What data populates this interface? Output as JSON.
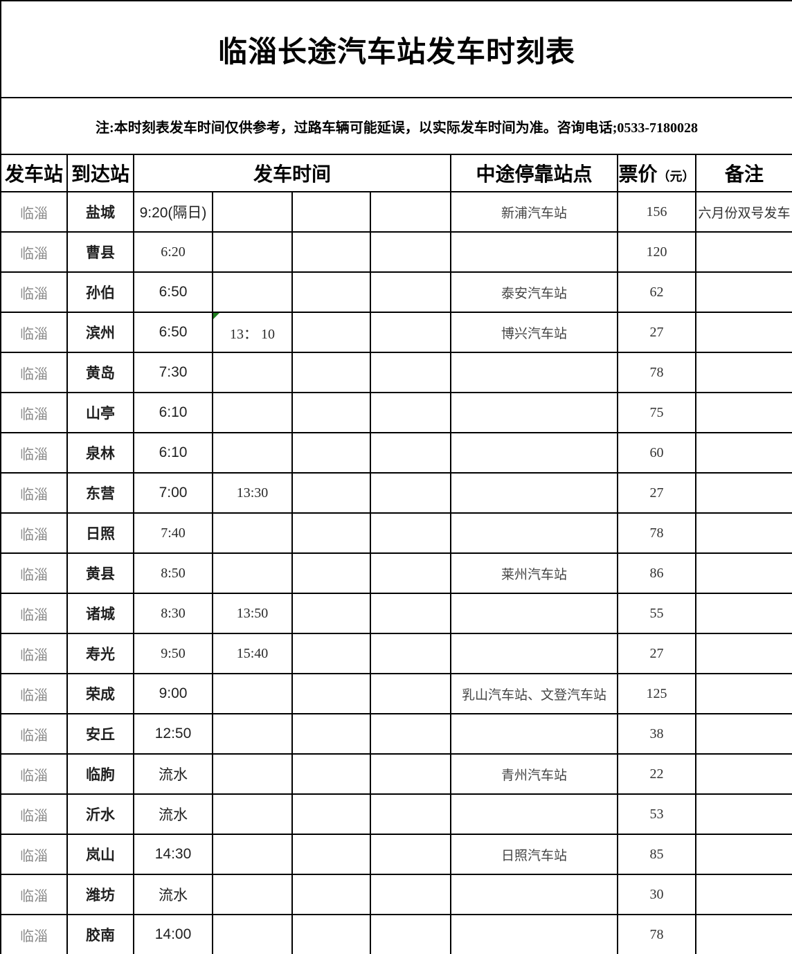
{
  "title": "临淄长途汽车站发车时刻表",
  "note": "注:本时刻表发车时间仅供参考，过路车辆可能延误，以实际发车时间为准。咨询电话;0533-7180028",
  "headers": {
    "departure_station": "发车站",
    "arrival_station": "到达站",
    "departure_time": "发车时间",
    "intermediate_stops": "中途停靠站点",
    "price_label": "票价",
    "price_unit": "（元）",
    "remarks": "备注"
  },
  "comment_flag_color": "#1e7e1e",
  "rows": [
    {
      "from": "临淄",
      "to": "盐城",
      "times": [
        {
          "t": "9:20(隔日)"
        }
      ],
      "stops": "新浦汽车站",
      "price": "156",
      "remark": "六月份双号发车"
    },
    {
      "from": "临淄",
      "to": "曹县",
      "times": [
        {
          "t": "6:20",
          "s": 1
        }
      ],
      "stops": "",
      "price": "120",
      "remark": ""
    },
    {
      "from": "临淄",
      "to": "孙伯",
      "times": [
        {
          "t": "6:50"
        }
      ],
      "stops": "泰安汽车站",
      "price": "62",
      "remark": ""
    },
    {
      "from": "临淄",
      "to": "滨州",
      "times": [
        {
          "t": "6:50"
        },
        {
          "t": "13： 10",
          "s": 1,
          "flag": 1
        }
      ],
      "stops": "博兴汽车站",
      "price": "27",
      "remark": ""
    },
    {
      "from": "临淄",
      "to": "黄岛",
      "times": [
        {
          "t": "7:30"
        }
      ],
      "stops": "",
      "price": "78",
      "remark": ""
    },
    {
      "from": "临淄",
      "to": "山亭",
      "times": [
        {
          "t": "6:10"
        }
      ],
      "stops": "",
      "price": "75",
      "remark": ""
    },
    {
      "from": "临淄",
      "to": "泉林",
      "times": [
        {
          "t": "6:10"
        }
      ],
      "stops": "",
      "price": "60",
      "remark": ""
    },
    {
      "from": "临淄",
      "to": "东营",
      "times": [
        {
          "t": "7:00"
        },
        {
          "t": "13:30",
          "s": 1
        }
      ],
      "stops": "",
      "price": "27",
      "remark": ""
    },
    {
      "from": "临淄",
      "to": "日照",
      "times": [
        {
          "t": "7:40",
          "s": 1
        }
      ],
      "stops": "",
      "price": "78",
      "remark": ""
    },
    {
      "from": "临淄",
      "to": "黄县",
      "times": [
        {
          "t": "8:50",
          "s": 1
        }
      ],
      "stops": "莱州汽车站",
      "price": "86",
      "remark": ""
    },
    {
      "from": "临淄",
      "to": "诸城",
      "times": [
        {
          "t": "8:30",
          "s": 1
        },
        {
          "t": "13:50",
          "s": 1
        }
      ],
      "stops": "",
      "price": "55",
      "remark": ""
    },
    {
      "from": "临淄",
      "to": "寿光",
      "times": [
        {
          "t": "9:50",
          "s": 1
        },
        {
          "t": "15:40",
          "s": 1
        }
      ],
      "stops": "",
      "price": "27",
      "remark": ""
    },
    {
      "from": "临淄",
      "to": "荣成",
      "times": [
        {
          "t": "9:00"
        }
      ],
      "stops": "乳山汽车站、文登汽车站",
      "price": "125",
      "remark": ""
    },
    {
      "from": "临淄",
      "to": "安丘",
      "times": [
        {
          "t": "12:50"
        }
      ],
      "stops": "",
      "price": "38",
      "remark": ""
    },
    {
      "from": "临淄",
      "to": "临朐",
      "times": [
        {
          "t": "流水"
        }
      ],
      "stops": "青州汽车站",
      "price": "22",
      "remark": ""
    },
    {
      "from": "临淄",
      "to": "沂水",
      "times": [
        {
          "t": "流水"
        }
      ],
      "stops": "",
      "price": "53",
      "remark": ""
    },
    {
      "from": "临淄",
      "to": "岚山",
      "times": [
        {
          "t": "14:30"
        }
      ],
      "stops": "日照汽车站",
      "price": "85",
      "remark": ""
    },
    {
      "from": "临淄",
      "to": "潍坊",
      "times": [
        {
          "t": "流水"
        }
      ],
      "stops": "",
      "price": "30",
      "remark": ""
    },
    {
      "from": "临淄",
      "to": "胶南",
      "times": [
        {
          "t": "14:00"
        }
      ],
      "stops": "",
      "price": "78",
      "remark": ""
    }
  ]
}
